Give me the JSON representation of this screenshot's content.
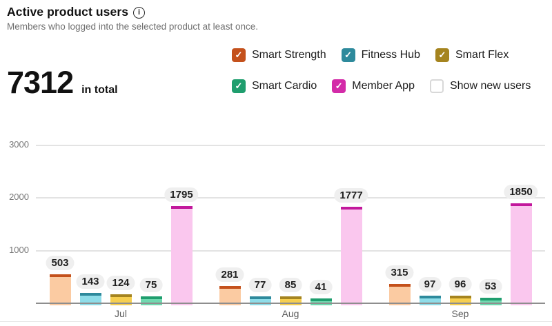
{
  "header": {
    "title": "Active product users",
    "subtitle": "Members who logged into the selected product at least once."
  },
  "icons": {
    "info": "i",
    "check": "✓"
  },
  "total": {
    "value": "7312",
    "label": "in total"
  },
  "legend": {
    "rows": [
      [
        {
          "id": "smart-strength",
          "label": "Smart Strength",
          "color": "#c4511c",
          "checked": true
        },
        {
          "id": "fitness-hub",
          "label": "Fitness Hub",
          "color": "#2e8a9c",
          "checked": true
        },
        {
          "id": "smart-flex",
          "label": "Smart Flex",
          "color": "#a5841f",
          "checked": true
        }
      ],
      [
        {
          "id": "smart-cardio",
          "label": "Smart Cardio",
          "color": "#1f9e6e",
          "checked": true
        },
        {
          "id": "member-app",
          "label": "Member App",
          "color": "#d32ba8",
          "checked": true
        },
        {
          "id": "show-new-users",
          "label": "Show new users",
          "color": "#ffffff",
          "checked": false
        }
      ]
    ]
  },
  "chart_data": {
    "type": "bar",
    "categories": [
      "Jul",
      "Aug",
      "Sep"
    ],
    "series": [
      {
        "name": "Smart Strength",
        "values": [
          503,
          281,
          315
        ],
        "fill": "#fbcba2",
        "cap": "#c4511c"
      },
      {
        "name": "Fitness Hub",
        "values": [
          143,
          77,
          97
        ],
        "fill": "#8edde9",
        "cap": "#2e8a9c"
      },
      {
        "name": "Smart Flex",
        "values": [
          124,
          85,
          96
        ],
        "fill": "#f6cf50",
        "cap": "#a5841f"
      },
      {
        "name": "Smart Cardio",
        "values": [
          75,
          41,
          53
        ],
        "fill": "#70d9b0",
        "cap": "#1f9e6e"
      },
      {
        "name": "Member App",
        "values": [
          1795,
          1777,
          1850
        ],
        "fill": "#fac7ee",
        "cap": "#c2189c"
      }
    ],
    "yticks": [
      1000,
      2000,
      3000
    ],
    "ylim": [
      0,
      3000
    ],
    "title": "Active product users",
    "xlabel": "",
    "ylabel": "",
    "grid": true,
    "legend_position": "top-right",
    "data_labels": true
  }
}
